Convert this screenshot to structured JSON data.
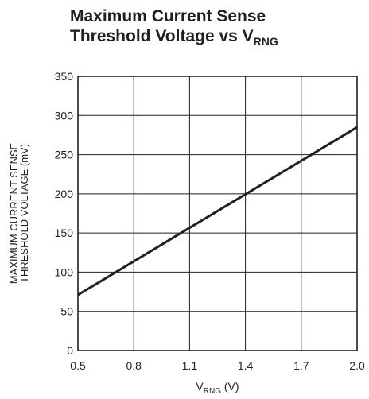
{
  "chart_data": {
    "type": "line",
    "title_line1": "Maximum Current Sense",
    "title_line2_main": "Threshold Voltage vs V",
    "title_line2_sub": "RNG",
    "xlabel_main": "V",
    "xlabel_sub": "RNG",
    "xlabel_unit": " (V)",
    "ylabel_line1": "MAXIMUM CURRENT SENSE",
    "ylabel_line2": "THRESHOLD VOLTAGE (mV)",
    "xlim": [
      0.5,
      2.0
    ],
    "ylim": [
      0,
      350
    ],
    "x_ticks": [
      "0.5",
      "0.8",
      "1.1",
      "1.4",
      "1.7",
      "2.0"
    ],
    "y_ticks": [
      "0",
      "50",
      "100",
      "150",
      "200",
      "250",
      "300",
      "350"
    ],
    "grid": true,
    "series": [
      {
        "x": [
          0.5,
          2.0
        ],
        "y": [
          71,
          285
        ]
      }
    ]
  }
}
